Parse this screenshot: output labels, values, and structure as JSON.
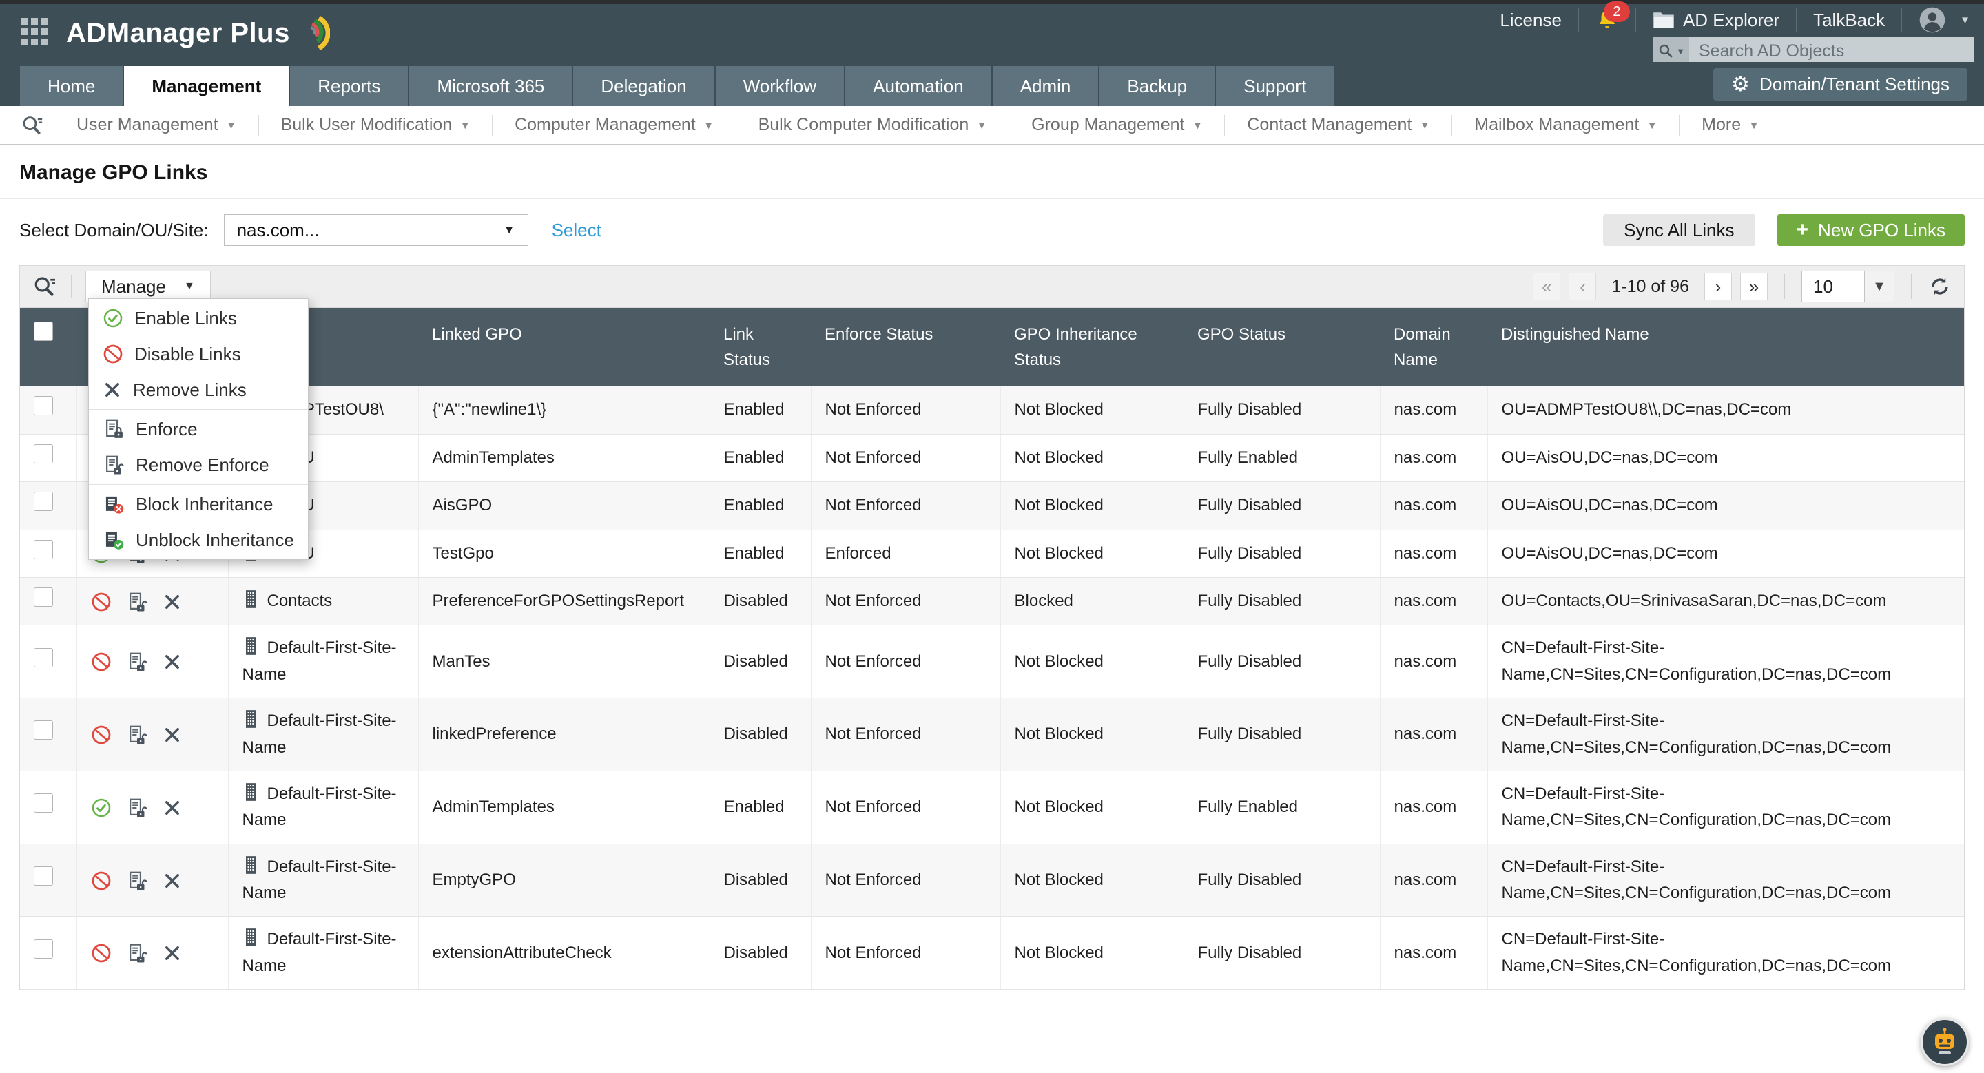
{
  "topbar": {
    "logo_text": "ADManager Plus",
    "license": "License",
    "notification_count": "2",
    "ad_explorer": "AD Explorer",
    "talkback": "TalkBack",
    "search_placeholder": "Search AD Objects"
  },
  "nav": {
    "tabs": [
      {
        "label": "Home",
        "active": false
      },
      {
        "label": "Management",
        "active": true
      },
      {
        "label": "Reports",
        "active": false
      },
      {
        "label": "Microsoft 365",
        "active": false
      },
      {
        "label": "Delegation",
        "active": false
      },
      {
        "label": "Workflow",
        "active": false
      },
      {
        "label": "Automation",
        "active": false
      },
      {
        "label": "Admin",
        "active": false
      },
      {
        "label": "Backup",
        "active": false
      },
      {
        "label": "Support",
        "active": false
      }
    ],
    "settings_button": "Domain/Tenant Settings"
  },
  "subnav": {
    "items": [
      "User Management",
      "Bulk User Modification",
      "Computer Management",
      "Bulk Computer Modification",
      "Group Management",
      "Contact Management",
      "Mailbox Management",
      "More"
    ]
  },
  "page": {
    "title": "Manage GPO Links",
    "domain_label": "Select Domain/OU/Site:",
    "domain_value": "nas.com...",
    "select_link": "Select",
    "sync_button": "Sync All Links",
    "new_gpo_button": "New GPO Links"
  },
  "toolbar": {
    "manage_button": "Manage",
    "pagination": {
      "range": "1-10 of 96",
      "page_size": "10"
    }
  },
  "manage_menu": {
    "items": [
      {
        "label": "Enable Links",
        "icon": "check",
        "group": 1
      },
      {
        "label": "Disable Links",
        "icon": "block",
        "group": 1
      },
      {
        "label": "Remove Links",
        "icon": "x",
        "group": 1
      },
      {
        "label": "Enforce",
        "icon": "scrollLock",
        "group": 2
      },
      {
        "label": "Remove Enforce",
        "icon": "scrollUnlock",
        "group": 2
      },
      {
        "label": "Block Inheritance",
        "icon": "scrollBlock",
        "group": 3
      },
      {
        "label": "Unblock Inheritance",
        "icon": "scrollCheck",
        "group": 3
      }
    ]
  },
  "table": {
    "columns": [
      "Name",
      "Linked GPO",
      "Link Status",
      "Enforce Status",
      "GPO Inheritance Status",
      "GPO Status",
      "Domain Name",
      "Distinguished Name"
    ],
    "rows": [
      {
        "status_icon": "enabled",
        "name": "ADMPTestOU8\\",
        "linked_gpo": "{\"A\":\"newline1\\}",
        "link_status": "Enabled",
        "enforce_status": "Not Enforced",
        "inheritance_status": "Not Blocked",
        "gpo_status": "Fully Disabled",
        "domain": "nas.com",
        "dn": "OU=ADMPTestOU8\\\\,DC=nas,DC=com"
      },
      {
        "status_icon": "enabled",
        "name": "AisOU",
        "linked_gpo": "AdminTemplates",
        "link_status": "Enabled",
        "enforce_status": "Not Enforced",
        "inheritance_status": "Not Blocked",
        "gpo_status": "Fully Enabled",
        "domain": "nas.com",
        "dn": "OU=AisOU,DC=nas,DC=com"
      },
      {
        "status_icon": "enabled",
        "name": "AisOU",
        "linked_gpo": "AisGPO",
        "link_status": "Enabled",
        "enforce_status": "Not Enforced",
        "inheritance_status": "Not Blocked",
        "gpo_status": "Fully Disabled",
        "domain": "nas.com",
        "dn": "OU=AisOU,DC=nas,DC=com"
      },
      {
        "status_icon": "enabled",
        "name": "AisOU",
        "linked_gpo": "TestGpo",
        "link_status": "Enabled",
        "enforce_status": "Enforced",
        "inheritance_status": "Not Blocked",
        "gpo_status": "Fully Disabled",
        "domain": "nas.com",
        "dn": "OU=AisOU,DC=nas,DC=com"
      },
      {
        "status_icon": "disabled",
        "name": "Contacts",
        "linked_gpo": "PreferenceForGPOSettingsReport",
        "link_status": "Disabled",
        "enforce_status": "Not Enforced",
        "inheritance_status": "Blocked",
        "gpo_status": "Fully Disabled",
        "domain": "nas.com",
        "dn": "OU=Contacts,OU=SrinivasaSaran,DC=nas,DC=com"
      },
      {
        "status_icon": "disabled",
        "name": "Default-First-Site-Name",
        "linked_gpo": "ManTes",
        "link_status": "Disabled",
        "enforce_status": "Not Enforced",
        "inheritance_status": "Not Blocked",
        "gpo_status": "Fully Disabled",
        "domain": "nas.com",
        "dn": "CN=Default-First-Site-Name,CN=Sites,CN=Configuration,DC=nas,DC=com"
      },
      {
        "status_icon": "disabled",
        "name": "Default-First-Site-Name",
        "linked_gpo": "linkedPreference",
        "link_status": "Disabled",
        "enforce_status": "Not Enforced",
        "inheritance_status": "Not Blocked",
        "gpo_status": "Fully Disabled",
        "domain": "nas.com",
        "dn": "CN=Default-First-Site-Name,CN=Sites,CN=Configuration,DC=nas,DC=com"
      },
      {
        "status_icon": "enabled",
        "name": "Default-First-Site-Name",
        "linked_gpo": "AdminTemplates",
        "link_status": "Enabled",
        "enforce_status": "Not Enforced",
        "inheritance_status": "Not Blocked",
        "gpo_status": "Fully Enabled",
        "domain": "nas.com",
        "dn": "CN=Default-First-Site-Name,CN=Sites,CN=Configuration,DC=nas,DC=com"
      },
      {
        "status_icon": "disabled",
        "name": "Default-First-Site-Name",
        "linked_gpo": "EmptyGPO",
        "link_status": "Disabled",
        "enforce_status": "Not Enforced",
        "inheritance_status": "Not Blocked",
        "gpo_status": "Fully Disabled",
        "domain": "nas.com",
        "dn": "CN=Default-First-Site-Name,CN=Sites,CN=Configuration,DC=nas,DC=com"
      },
      {
        "status_icon": "disabled",
        "name": "Default-First-Site-Name",
        "linked_gpo": "extensionAttributeCheck",
        "link_status": "Disabled",
        "enforce_status": "Not Enforced",
        "inheritance_status": "Not Blocked",
        "gpo_status": "Fully Disabled",
        "domain": "nas.com",
        "dn": "CN=Default-First-Site-Name,CN=Sites,CN=Configuration,DC=nas,DC=com"
      }
    ]
  }
}
